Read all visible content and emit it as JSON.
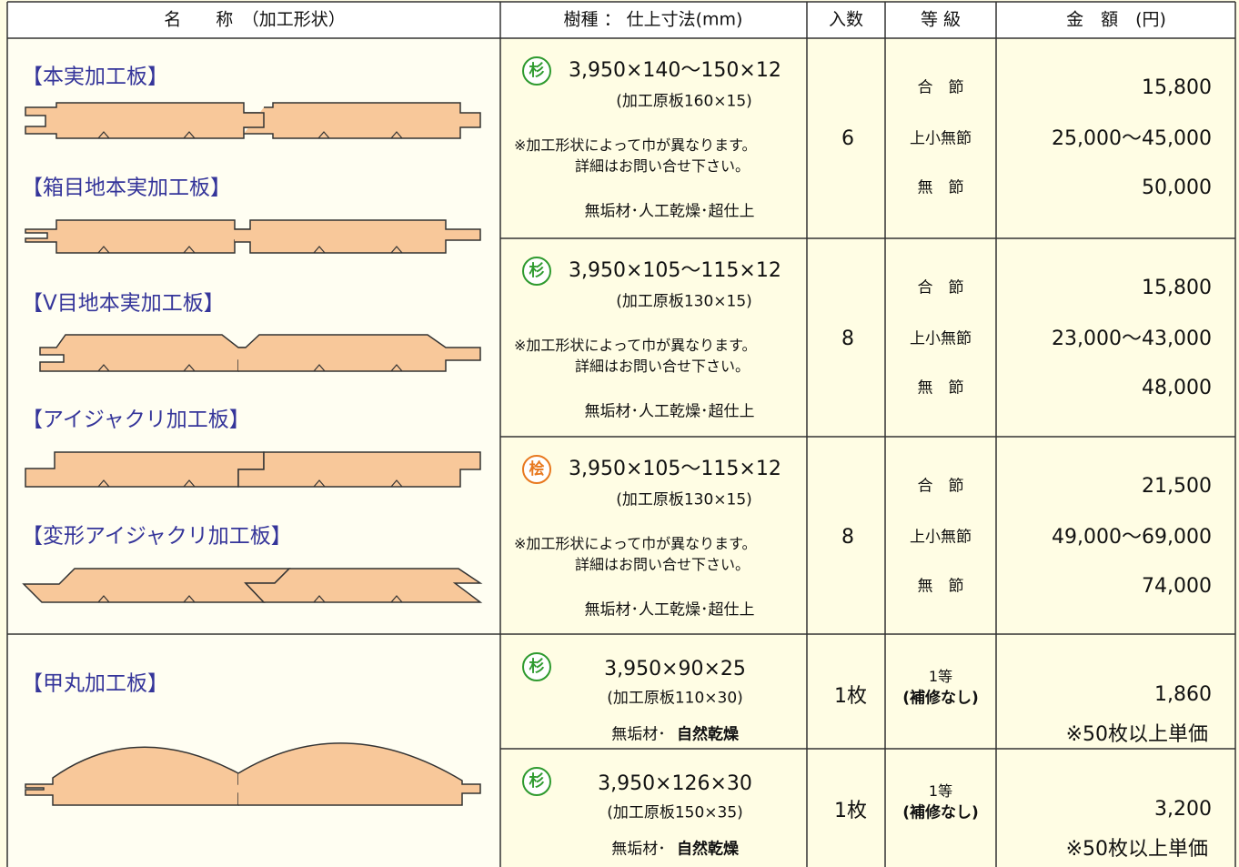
{
  "header": {
    "cells": [
      "名　　称　（加工形状）",
      "樹種 ： 仕上寸法(mm)",
      "入数",
      "等 級",
      "金　額　(円)"
    ]
  },
  "names": [
    "【本実加工板】",
    "【箱目地本実加工板】",
    "【V目地本実加工板】",
    "【アイジャクリ加工板】",
    "【変形アイジャクリ加工板】",
    "【甲丸加工板】"
  ],
  "products": [
    {
      "species": "杉",
      "species_color": "#2e9a2e",
      "size": "3,950×140〜150×12",
      "raw": "(加工原板160×15)",
      "note_lines": [
        "※加工形状によって巾が異なります。",
        "詳細はお問い合せ下さい。"
      ],
      "finish": "無垢材･人工乾燥･超仕上",
      "count": 6,
      "grades": [
        "合　節",
        "上小無節",
        "無　節"
      ],
      "prices": [
        "15,800",
        "25,000〜45,000",
        "50,000"
      ]
    },
    {
      "species": "杉",
      "species_color": "#2e9a2e",
      "size": "3,950×105〜115×12",
      "raw": "(加工原板130×15)",
      "note_lines": [
        "※加工形状によって巾が異なります。",
        "詳細はお問い合せ下さい。"
      ],
      "finish": "無垢材･人工乾燥･超仕上",
      "count": 8,
      "grades": [
        "合　節",
        "上小無節",
        "無　節"
      ],
      "prices": [
        "15,800",
        "23,000〜43,000",
        "48,000"
      ]
    },
    {
      "species": "桧",
      "species_color": "#e8781e",
      "size": "3,950×105〜115×12",
      "raw": "(加工原板130×15)",
      "note_lines": [
        "※加工形状によって巾が異なります。",
        "詳細はお問い合せ下さい。"
      ],
      "finish": "無垢材･人工乾燥･超仕上",
      "count": 8,
      "grades": [
        "合　節",
        "上小無節",
        "無　節"
      ],
      "prices": [
        "21,500",
        "49,000〜69,000",
        "74,000"
      ]
    }
  ],
  "round_products": [
    {
      "species": "杉",
      "species_color": "#2e9a2e",
      "size": "3,950×90×25",
      "raw": "(加工原板110×30)",
      "finish": [
        "無垢材･",
        "自然乾燥"
      ],
      "count": "1枚",
      "grade": [
        "1等",
        "(補修なし)"
      ],
      "price": "1,860",
      "price_note": "※50枚以上単価"
    },
    {
      "species": "杉",
      "species_color": "#2e9a2e",
      "size": "3,950×126×30",
      "raw": "(加工原板150×35)",
      "finish": [
        "無垢材･",
        "自然乾燥"
      ],
      "count": "1枚",
      "grade": [
        "1等",
        "(補修なし)"
      ],
      "price": "3,200",
      "price_note": "※50枚以上単価"
    }
  ]
}
